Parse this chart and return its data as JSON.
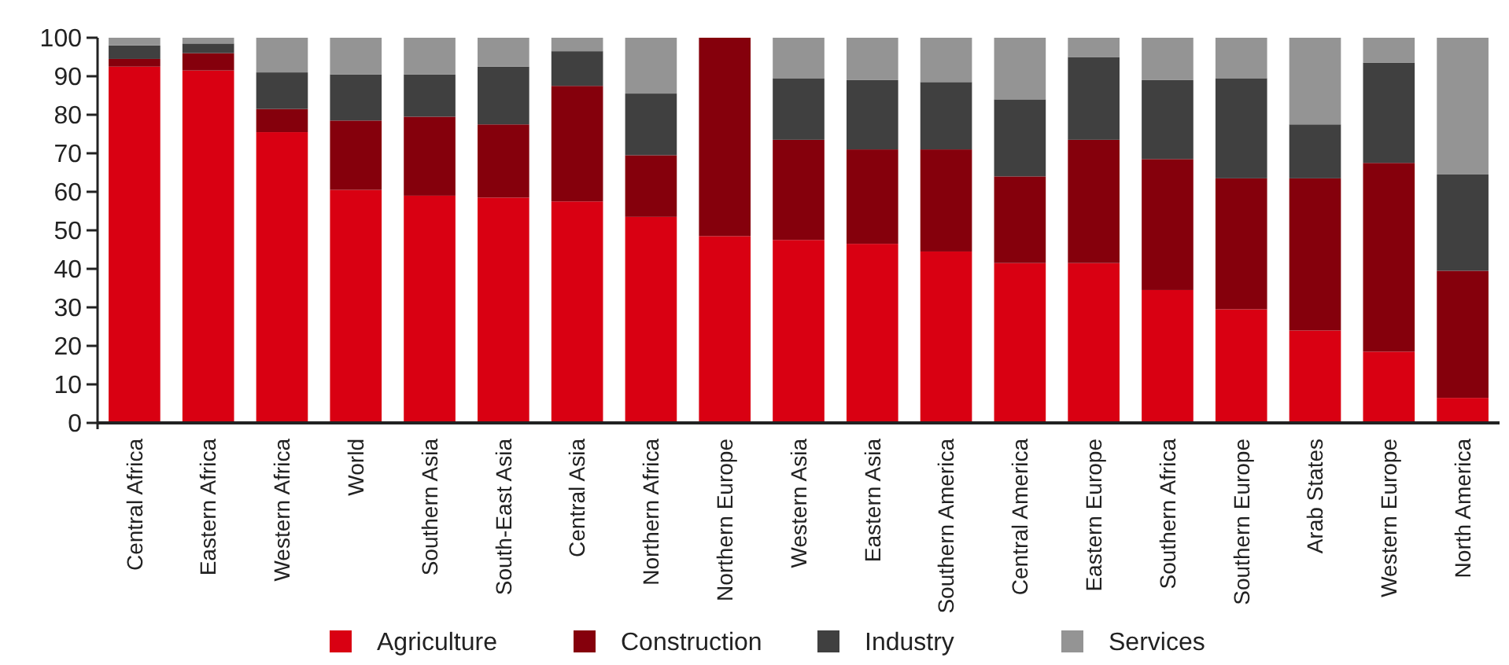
{
  "chart_data": {
    "type": "bar",
    "stacked": true,
    "categories": [
      "Central Africa",
      "Eastern Africa",
      "Western Africa",
      "World",
      "Southern Asia",
      "South-East Asia",
      "Central Asia",
      "Northern Africa",
      "Northern Europe",
      "Western Asia",
      "Eastern Asia",
      "Southern America",
      "Central America",
      "Eastern Europe",
      "Southern Africa",
      "Southern Europe",
      "Arab States",
      "Western Europe",
      "North America"
    ],
    "series": [
      {
        "name": "Agriculture",
        "color": "#d90012",
        "values": [
          92.5,
          91.5,
          75.5,
          60.5,
          59,
          58.5,
          57.5,
          53.5,
          48.5,
          47.5,
          46.5,
          44.5,
          41.5,
          41.5,
          34.5,
          29.5,
          24,
          18.5,
          6.5
        ]
      },
      {
        "name": "Construction",
        "color": "#85000c",
        "values": [
          2,
          4.5,
          6,
          18,
          20.5,
          19,
          30,
          16,
          51.5,
          26,
          24.5,
          26.5,
          22.5,
          32,
          34,
          34,
          39.5,
          49,
          33
        ]
      },
      {
        "name": "Industry",
        "color": "#404040",
        "values": [
          3.5,
          2.5,
          9.5,
          12,
          11,
          15,
          9,
          16,
          0,
          16,
          18,
          17.5,
          20,
          21.5,
          20.5,
          26,
          14,
          26,
          25
        ]
      },
      {
        "name": "Services",
        "color": "#949494",
        "values": [
          2,
          1.5,
          9,
          9.5,
          9.5,
          7.5,
          3.5,
          14.5,
          0,
          10.5,
          11,
          11.5,
          16,
          5,
          11,
          10.5,
          22.5,
          6.5,
          35.5
        ]
      }
    ],
    "ylim": [
      0,
      100
    ],
    "yticks": [
      0,
      10,
      20,
      30,
      40,
      50,
      60,
      70,
      80,
      90,
      100
    ],
    "grid": false,
    "legend": "bottom"
  }
}
